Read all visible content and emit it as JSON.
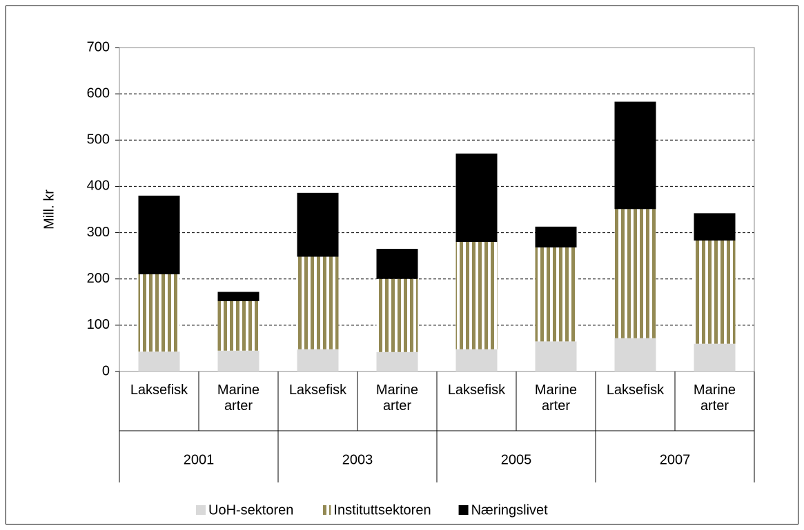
{
  "chart_data": {
    "type": "stacked_bar",
    "y_label": "Mill. kr",
    "categories": [
      "Laksefisk",
      "Marine arter",
      "Laksefisk",
      "Marine arter",
      "Laksefisk",
      "Marine arter",
      "Laksefisk",
      "Marine arter"
    ],
    "groups": [
      "2001",
      "2003",
      "2005",
      "2007"
    ],
    "series": [
      {
        "name": "UoH-sektoren",
        "color": "#d9d9d9",
        "values": [
          43,
          45,
          48,
          42,
          48,
          65,
          72,
          60
        ]
      },
      {
        "name": "Instituttsektoren",
        "color": "#938953",
        "pattern": "vertical-stripes",
        "values": [
          167,
          107,
          200,
          158,
          232,
          203,
          279,
          223
        ]
      },
      {
        "name": "Næringslivet",
        "color": "#000000",
        "values": [
          170,
          20,
          138,
          65,
          191,
          45,
          232,
          59
        ]
      }
    ],
    "ylim": [
      0,
      700
    ],
    "yticks": [
      0,
      100,
      200,
      300,
      400,
      500,
      600,
      700
    ],
    "grid": true,
    "legend": "bottom"
  }
}
